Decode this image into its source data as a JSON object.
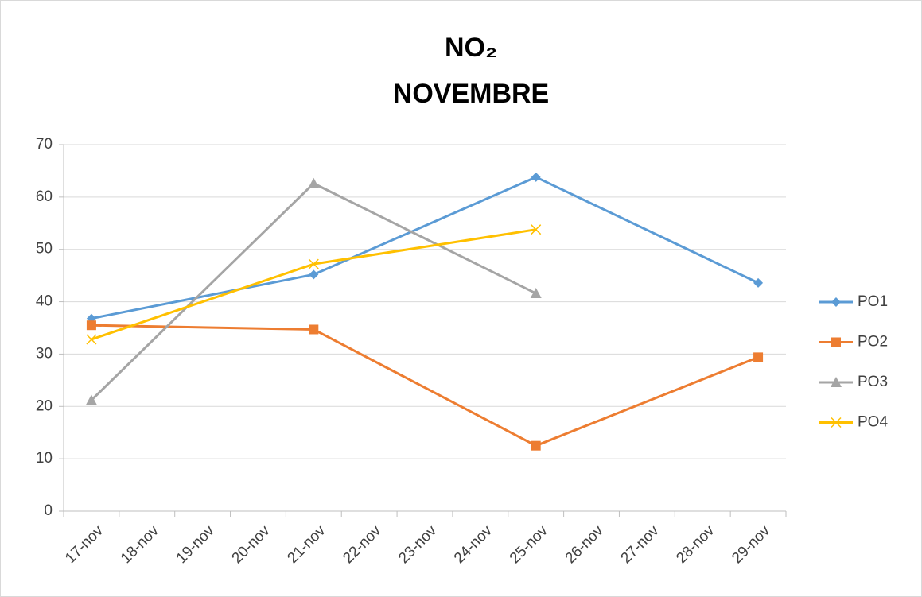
{
  "chart_data": {
    "type": "line",
    "title": [
      "NO₂",
      "NOVEMBRE"
    ],
    "categories": [
      "17-nov",
      "18-nov",
      "19-nov",
      "20-nov",
      "21-nov",
      "22-nov",
      "23-nov",
      "24-nov",
      "25-nov",
      "26-nov",
      "27-nov",
      "28-nov",
      "29-nov"
    ],
    "x": [
      "17-nov",
      "21-nov",
      "25-nov",
      "29-nov"
    ],
    "series": [
      {
        "name": "PO1",
        "color": "#5b9bd5",
        "marker": "diamond",
        "values": [
          36.8,
          45.2,
          63.8,
          43.6
        ]
      },
      {
        "name": "PO2",
        "color": "#ed7d31",
        "marker": "square",
        "values": [
          35.5,
          34.7,
          12.5,
          29.4
        ]
      },
      {
        "name": "PO3",
        "color": "#a5a5a5",
        "marker": "triangle",
        "values": [
          21.2,
          62.6,
          41.6,
          null
        ]
      },
      {
        "name": "PO4",
        "color": "#ffc000",
        "marker": "x",
        "values": [
          32.8,
          47.2,
          53.8,
          null
        ]
      }
    ],
    "ylim": [
      0,
      70
    ],
    "yticks": [
      0,
      10,
      20,
      30,
      40,
      50,
      60,
      70
    ],
    "grid": true,
    "legend": "right"
  }
}
